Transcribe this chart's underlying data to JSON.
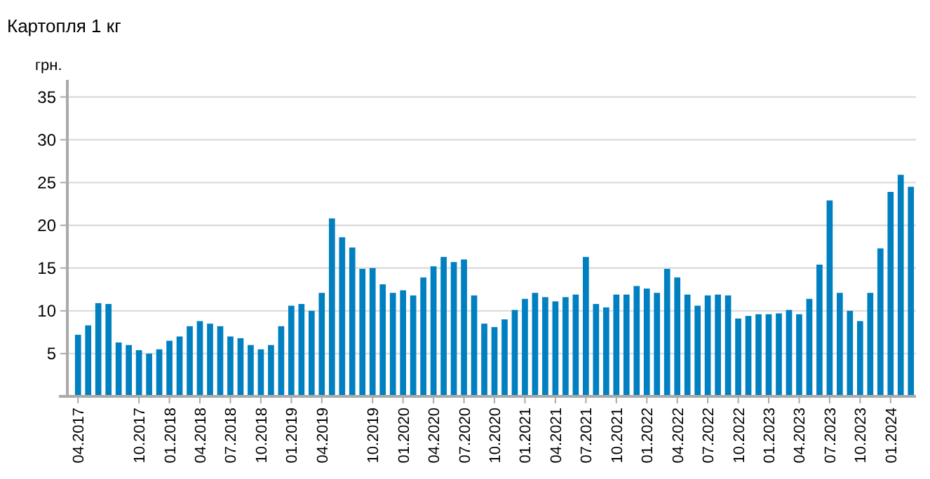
{
  "chart_data": {
    "type": "bar",
    "title": "Картопля 1 кг",
    "ylabel": "грн.",
    "categories": [
      "04.2017",
      null,
      null,
      null,
      null,
      null,
      "10.2017",
      null,
      null,
      "01.2018",
      null,
      null,
      "04.2018",
      null,
      null,
      "07.2018",
      null,
      null,
      "10.2018",
      null,
      null,
      "01.2019",
      null,
      null,
      "04.2019",
      null,
      null,
      null,
      null,
      "10.2019",
      null,
      null,
      "01.2020",
      null,
      null,
      "04.2020",
      null,
      null,
      "07.2020",
      null,
      null,
      "10.2020",
      null,
      null,
      "01.2021",
      null,
      null,
      "04.2021",
      null,
      null,
      "07.2021",
      null,
      null,
      "10.2021",
      null,
      null,
      "01.2022",
      null,
      null,
      "04.2022",
      null,
      null,
      "07.2022",
      null,
      null,
      "10.2022",
      null,
      null,
      "01.2023",
      null,
      null,
      "04.2023",
      null,
      null,
      "07.2023",
      null,
      null,
      "10.2023",
      null,
      null,
      "01.2024",
      null,
      null
    ],
    "values": [
      7.2,
      8.3,
      10.9,
      10.8,
      6.3,
      6.0,
      5.4,
      5.0,
      5.5,
      6.5,
      7.0,
      8.2,
      8.8,
      8.5,
      8.2,
      7.0,
      6.8,
      6.0,
      5.5,
      6.0,
      8.2,
      10.6,
      10.8,
      10.0,
      12.1,
      20.8,
      18.6,
      17.4,
      14.9,
      15.0,
      13.1,
      12.1,
      12.4,
      11.8,
      13.9,
      15.2,
      16.3,
      15.7,
      16.0,
      11.8,
      8.5,
      8.1,
      9.0,
      10.1,
      11.4,
      12.1,
      11.6,
      11.1,
      11.6,
      11.9,
      16.3,
      10.8,
      10.4,
      11.9,
      11.9,
      12.9,
      12.6,
      12.1,
      14.9,
      13.9,
      11.9,
      10.6,
      11.8,
      11.9,
      11.8,
      9.1,
      9.4,
      9.6,
      9.6,
      9.7,
      10.1,
      9.6,
      11.4,
      15.4,
      22.9,
      12.1,
      10.0,
      8.8,
      12.1,
      17.3,
      23.9,
      25.9,
      24.5
    ],
    "color": "#0080c0",
    "ylim": [
      0,
      37
    ],
    "yticks": [
      5,
      10,
      15,
      20,
      25,
      30,
      35
    ],
    "grid": "y"
  }
}
